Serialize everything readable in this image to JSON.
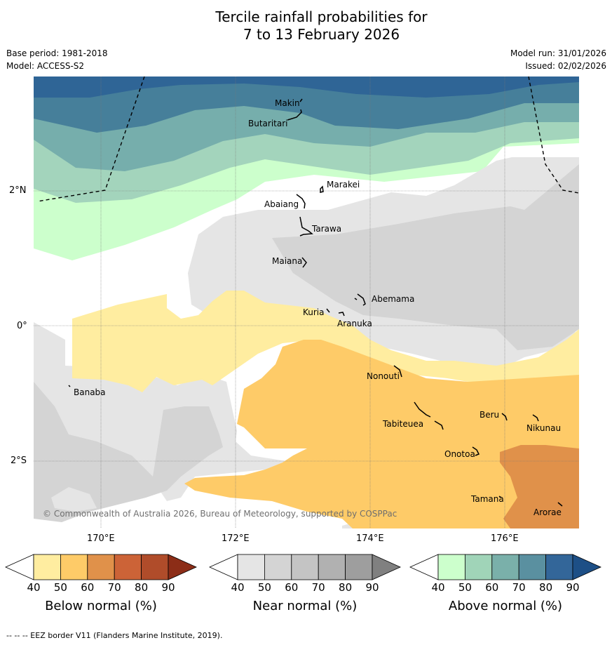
{
  "title_line1": "Tercile rainfall probabilities for",
  "title_line2": "7 to 13 February 2026",
  "base_period": "Base period: 1981-2018",
  "model": "Model: ACCESS-S2",
  "model_run": "Model run: 31/01/2026",
  "issued": "Issued: 02/02/2026",
  "copyright": "© Commonwealth of Australia 2026, Bureau of Meteorology, supported by COSPPac",
  "footer_note": "--  --  -- EEZ border V11 (Flanders Marine Institute, 2019).",
  "axes": {
    "lon_labels": [
      "170°E",
      "172°E",
      "174°E",
      "176°E"
    ],
    "lat_labels": [
      "2°N",
      "0°",
      "2°S"
    ]
  },
  "places": [
    {
      "name": "Makin"
    },
    {
      "name": "Butaritari"
    },
    {
      "name": "Marakei"
    },
    {
      "name": "Abaiang"
    },
    {
      "name": "Tarawa"
    },
    {
      "name": "Maiana"
    },
    {
      "name": "Abemama"
    },
    {
      "name": "Kuria"
    },
    {
      "name": "Aranuka"
    },
    {
      "name": "Banaba"
    },
    {
      "name": "Nonouti"
    },
    {
      "name": "Tabiteuea"
    },
    {
      "name": "Beru"
    },
    {
      "name": "Nikunau"
    },
    {
      "name": "Onotoa"
    },
    {
      "name": "Tamana"
    },
    {
      "name": "Arorae"
    }
  ],
  "colorbars": {
    "below": {
      "label": "Below normal (%)",
      "ticks": [
        "40",
        "50",
        "60",
        "70",
        "80",
        "90"
      ],
      "colors": [
        "#ffffff",
        "#ffeda0",
        "#fecb68",
        "#e0914a",
        "#cc6337",
        "#b04c2a",
        "#8c2d17"
      ]
    },
    "near": {
      "label": "Near normal (%)",
      "ticks": [
        "40",
        "50",
        "60",
        "70",
        "80",
        "90"
      ],
      "colors": [
        "#ffffff",
        "#e5e5e5",
        "#d4d4d4",
        "#c4c4c4",
        "#b1b1b1",
        "#9e9e9e",
        "#808080"
      ]
    },
    "above": {
      "label": "Above normal (%)",
      "ticks": [
        "40",
        "50",
        "60",
        "70",
        "80",
        "90"
      ],
      "colors": [
        "#ffffff",
        "#ccffcc",
        "#a0d4b8",
        "#7ab0aa",
        "#5a90a0",
        "#336699",
        "#1d4f86"
      ]
    }
  }
}
